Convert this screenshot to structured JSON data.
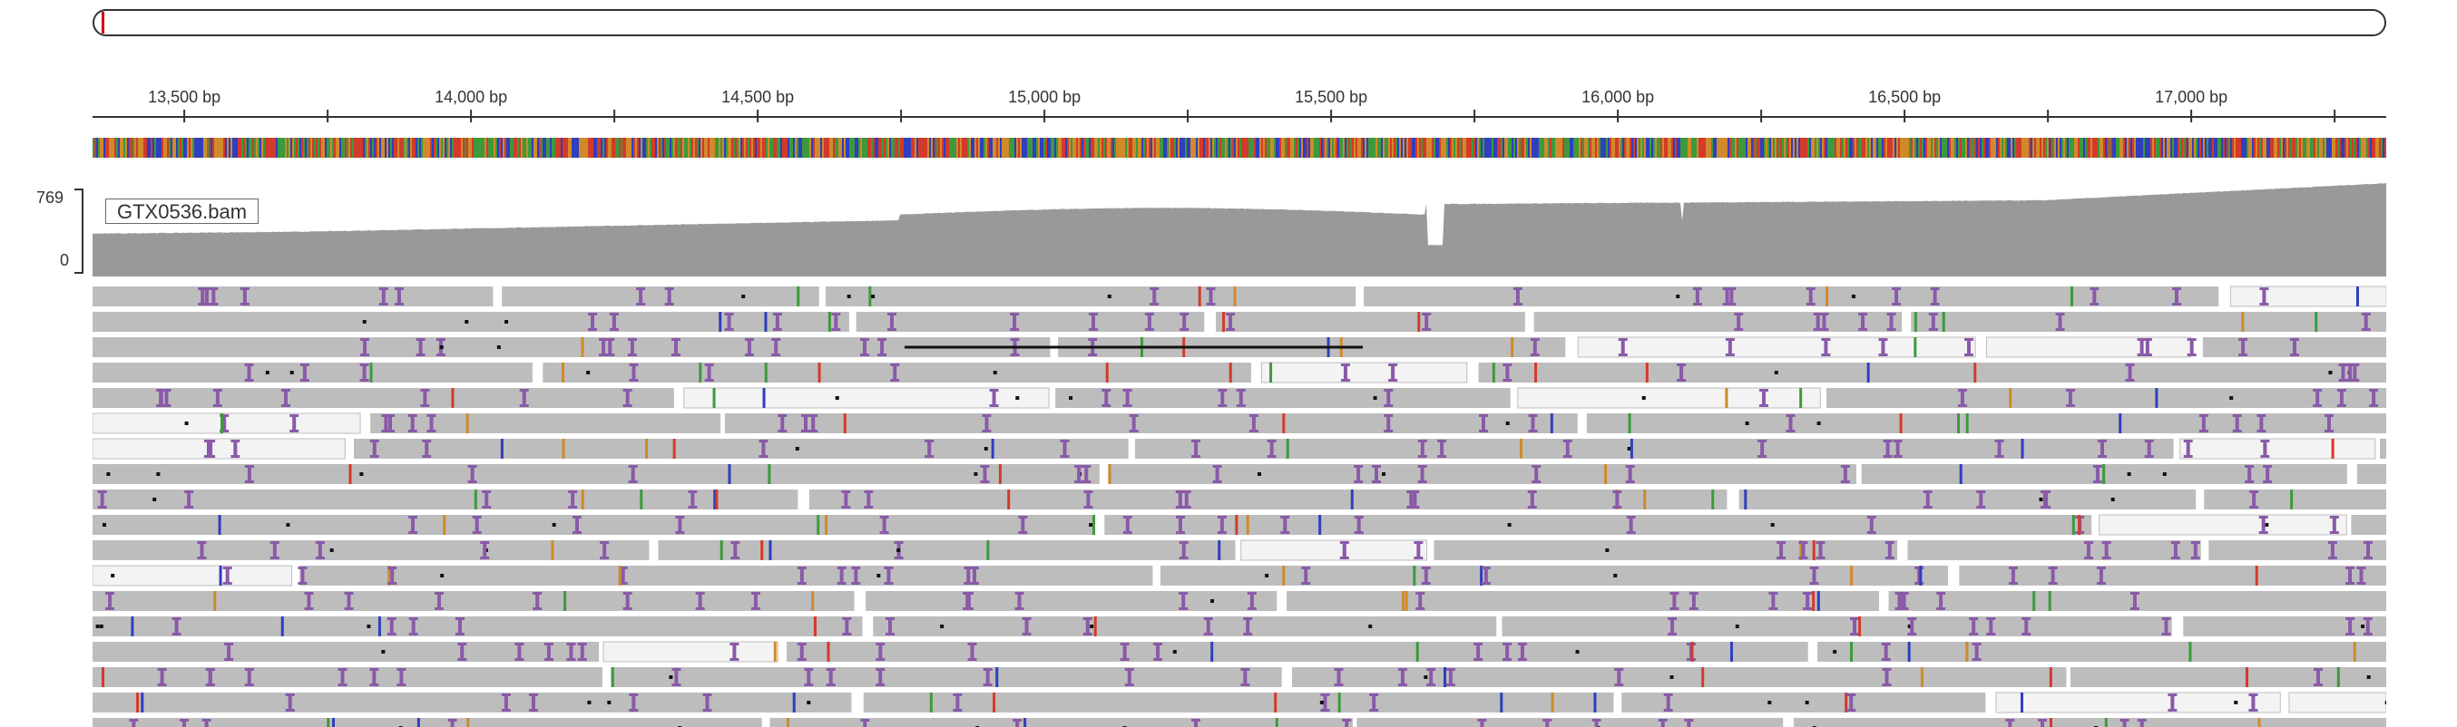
{
  "ideogram": {
    "indicator_color": "#d40000"
  },
  "ruler": {
    "ticks": [
      {
        "bp": 13500,
        "label": "13,500 bp"
      },
      {
        "bp": 14000,
        "label": "14,000 bp"
      },
      {
        "bp": 14500,
        "label": "14,500 bp"
      },
      {
        "bp": 15000,
        "label": "15,000 bp"
      },
      {
        "bp": 15500,
        "label": "15,500 bp"
      },
      {
        "bp": 16000,
        "label": "16,000 bp"
      },
      {
        "bp": 16500,
        "label": "16,500 bp"
      },
      {
        "bp": 17000,
        "label": "17,000 bp"
      }
    ],
    "visible_range_bp": [
      13340,
      17340
    ]
  },
  "coverage": {
    "track_name": "GTX0536.bam",
    "scale_max": "769",
    "scale_min": "0",
    "fill_color": "#999999"
  },
  "colors": {
    "read_gray": "#bdbdbd",
    "read_light": "#f3f3f3",
    "insertion": "#8a5aa8",
    "base_A": "#3c9a3c",
    "base_C": "#2f3fbf",
    "base_G": "#d08a2a",
    "base_T": "#d43a2a"
  },
  "icons": {
    "ideogram": "chromosome-ideogram-icon",
    "sequence": "reference-sequence-track-icon"
  }
}
